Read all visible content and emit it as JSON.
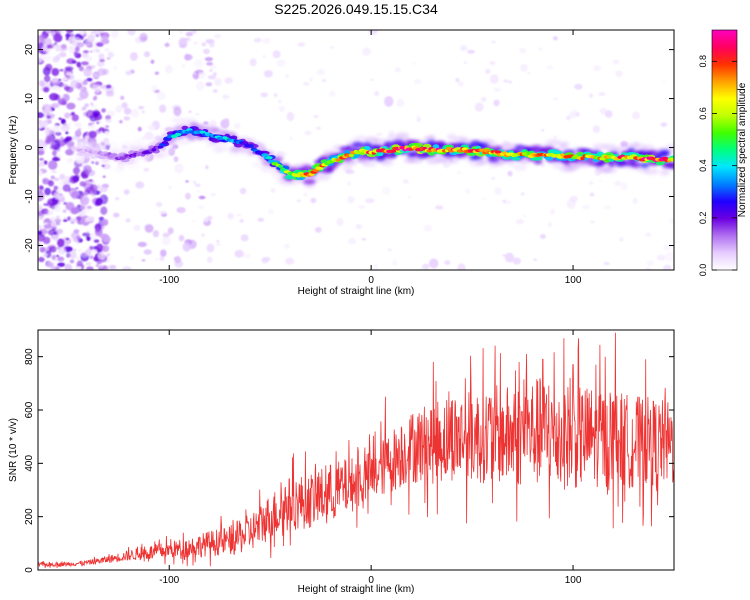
{
  "title": "S225.2026.049.15.15.C34",
  "colors": {
    "snr_line": "#ee3333",
    "axis": "#000000"
  },
  "chart_data": [
    {
      "type": "heatmap",
      "title": "S225.2026.049.15.15.C34",
      "xlabel": "Height of straight line (km)",
      "ylabel": "Frequency (Hz)",
      "xlim": [
        -165,
        150
      ],
      "ylim": [
        -25,
        24
      ],
      "xticks": [
        -100,
        0,
        100
      ],
      "xtick_labels": [
        "-100",
        "0",
        "100"
      ],
      "yticks": [
        -20,
        -10,
        0,
        10,
        20
      ],
      "ytick_labels": [
        "-20",
        "-10",
        "0",
        "10",
        "20"
      ],
      "colorbar": {
        "label": "Normalized spectral amplitude",
        "range": [
          0,
          0.92
        ],
        "ticks": [
          0.0,
          0.2,
          0.4,
          0.6,
          0.8
        ],
        "tick_labels": [
          "0.0",
          "0.2",
          "0.4",
          "0.6",
          "0.8"
        ],
        "colormap": [
          "#ffffff",
          "#e6ccff",
          "#b070f0",
          "#6a00e0",
          "#2000ff",
          "#0080ff",
          "#00e5ff",
          "#00ff80",
          "#40ff00",
          "#c0ff00",
          "#ffff00",
          "#ffa000",
          "#ff3000",
          "#ff0060",
          "#ff00c0"
        ]
      },
      "ridge": {
        "x": [
          -145,
          -135,
          -125,
          -115,
          -105,
          -100,
          -95,
          -90,
          -85,
          -80,
          -75,
          -70,
          -65,
          -60,
          -55,
          -50,
          -45,
          -40,
          -35,
          -30,
          -25,
          -20,
          -15,
          -10,
          -5,
          0,
          10,
          20,
          30,
          40,
          50,
          60,
          70,
          80,
          90,
          100,
          110,
          120,
          130,
          140,
          150
        ],
        "y": [
          -0.5,
          -1.0,
          -2.0,
          -1.5,
          0,
          2.0,
          3.0,
          3.5,
          3.0,
          2.5,
          2.0,
          1.5,
          1.0,
          0.5,
          -1.0,
          -2.5,
          -4.0,
          -5.5,
          -5.5,
          -5.5,
          -4.0,
          -3.0,
          -2.0,
          -1.5,
          -0.5,
          -1.0,
          -0.5,
          0,
          -0.5,
          -0.5,
          -0.5,
          -1.0,
          -1.5,
          -1.5,
          -1.5,
          -2.0,
          -2.0,
          -2.0,
          -2.0,
          -2.5,
          -2.5
        ],
        "amplitude": [
          0.08,
          0.1,
          0.15,
          0.18,
          0.2,
          0.35,
          0.4,
          0.38,
          0.4,
          0.35,
          0.38,
          0.4,
          0.3,
          0.25,
          0.3,
          0.45,
          0.55,
          0.65,
          0.7,
          0.72,
          0.7,
          0.68,
          0.7,
          0.72,
          0.75,
          0.8,
          0.82,
          0.85,
          0.8,
          0.78,
          0.8,
          0.75,
          0.72,
          0.7,
          0.7,
          0.72,
          0.7,
          0.75,
          0.8,
          0.85,
          0.7
        ]
      }
    },
    {
      "type": "line",
      "xlabel": "Height of straight line (km)",
      "ylabel": "SNR (10 * v/v)",
      "xlim": [
        -165,
        150
      ],
      "ylim": [
        0,
        900
      ],
      "xticks": [
        -100,
        0,
        100
      ],
      "xtick_labels": [
        "-100",
        "0",
        "100"
      ],
      "yticks": [
        0,
        200,
        400,
        600,
        800
      ],
      "ytick_labels": [
        "0",
        "200",
        "400",
        "600",
        "800"
      ],
      "series": [
        {
          "name": "SNR",
          "x": [
            -165,
            -150,
            -140,
            -130,
            -120,
            -110,
            -100,
            -90,
            -80,
            -70,
            -60,
            -50,
            -40,
            -30,
            -20,
            -10,
            0,
            10,
            20,
            30,
            40,
            50,
            60,
            70,
            80,
            90,
            100,
            110,
            120,
            130,
            140,
            150
          ],
          "y": [
            20,
            22,
            28,
            40,
            55,
            65,
            75,
            85,
            100,
            110,
            140,
            200,
            250,
            260,
            290,
            320,
            350,
            410,
            460,
            480,
            500,
            500,
            510,
            500,
            520,
            510,
            500,
            500,
            490,
            480,
            480,
            470
          ],
          "noise": [
            10,
            10,
            12,
            18,
            25,
            35,
            40,
            50,
            60,
            70,
            90,
            110,
            130,
            130,
            140,
            130,
            120,
            150,
            170,
            200,
            210,
            220,
            230,
            240,
            260,
            260,
            250,
            240,
            230,
            220,
            210,
            200
          ],
          "peak_x": [
            7,
            77,
            85,
            100,
            121,
            136
          ],
          "peak_y": [
            650,
            810,
            790,
            770,
            890,
            790
          ]
        }
      ]
    }
  ]
}
